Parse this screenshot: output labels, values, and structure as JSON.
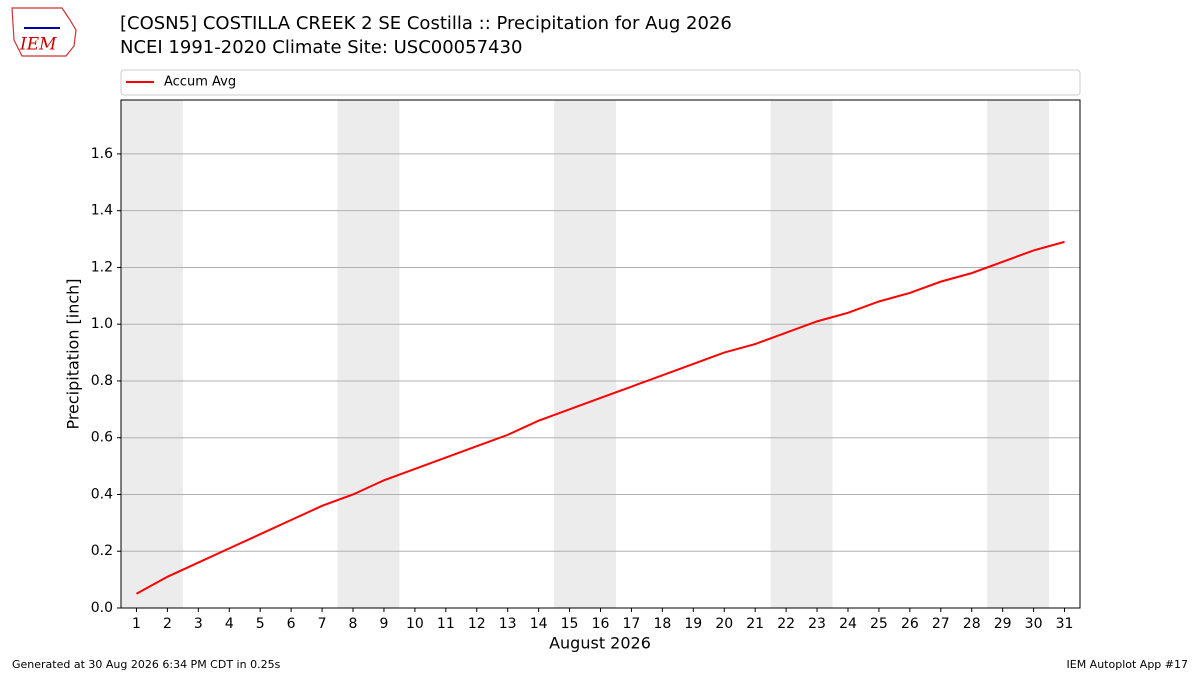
{
  "logo": "IEM",
  "footer_left": "Generated at 30 Aug 2026 6:34 PM CDT in 0.25s",
  "footer_right": "IEM Autoplot App #17",
  "chart_data": {
    "type": "line",
    "title": "[COSN5] COSTILLA CREEK 2 SE Costilla :: Precipitation for Aug 2026",
    "subtitle": "NCEI 1991-2020 Climate Site: USC00057430",
    "x_label": "August 2026",
    "y_label": "Precipitation [inch]",
    "x": [
      1,
      2,
      3,
      4,
      5,
      6,
      7,
      8,
      9,
      10,
      11,
      12,
      13,
      14,
      15,
      16,
      17,
      18,
      19,
      20,
      21,
      22,
      23,
      24,
      25,
      26,
      27,
      28,
      29,
      30,
      31
    ],
    "series": [
      {
        "name": "Accum Avg",
        "color": "#ff0000",
        "values": [
          0.05,
          0.11,
          0.16,
          0.21,
          0.26,
          0.31,
          0.36,
          0.4,
          0.45,
          0.49,
          0.53,
          0.57,
          0.61,
          0.66,
          0.7,
          0.74,
          0.78,
          0.82,
          0.86,
          0.9,
          0.93,
          0.97,
          1.01,
          1.04,
          1.08,
          1.11,
          1.15,
          1.18,
          1.22,
          1.26,
          1.29
        ]
      }
    ],
    "xlim": [
      0.5,
      31.5
    ],
    "xticks": [
      1,
      2,
      3,
      4,
      5,
      6,
      7,
      8,
      9,
      10,
      11,
      12,
      13,
      14,
      15,
      16,
      17,
      18,
      19,
      20,
      21,
      22,
      23,
      24,
      25,
      26,
      27,
      28,
      29,
      30,
      31
    ],
    "ylim": [
      0,
      1.79
    ],
    "yticks": [
      {
        "value": 0,
        "label": "0.0"
      },
      0.2,
      0.4,
      0.6,
      0.8,
      {
        "value": 1,
        "label": "1.0"
      },
      1.2,
      1.4,
      1.6
    ],
    "shaded_x_ranges": [
      [
        0.5,
        2.5
      ],
      [
        7.5,
        9.5
      ],
      [
        14.5,
        16.5
      ],
      [
        21.5,
        23.5
      ],
      [
        28.5,
        30.5
      ]
    ],
    "shade_color": "#ececec",
    "grid": true,
    "legend": "top"
  }
}
